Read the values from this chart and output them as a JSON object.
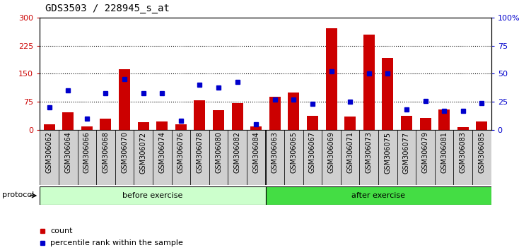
{
  "title": "GDS3503 / 228945_s_at",
  "samples": [
    "GSM306062",
    "GSM306064",
    "GSM306066",
    "GSM306068",
    "GSM306070",
    "GSM306072",
    "GSM306074",
    "GSM306076",
    "GSM306078",
    "GSM306080",
    "GSM306082",
    "GSM306084",
    "GSM306063",
    "GSM306065",
    "GSM306067",
    "GSM306069",
    "GSM306071",
    "GSM306073",
    "GSM306075",
    "GSM306077",
    "GSM306079",
    "GSM306081",
    "GSM306083",
    "GSM306085"
  ],
  "counts": [
    15,
    48,
    10,
    30,
    163,
    20,
    22,
    15,
    80,
    52,
    72,
    10,
    88,
    100,
    38,
    272,
    35,
    255,
    193,
    38,
    32,
    55,
    8,
    22
  ],
  "percentile_ranks": [
    20,
    35,
    10,
    33,
    45,
    33,
    33,
    8,
    40,
    38,
    43,
    5,
    27,
    27,
    23,
    52,
    25,
    50,
    50,
    18,
    26,
    17,
    17,
    24
  ],
  "before_count": 12,
  "after_count": 12,
  "before_label": "before exercise",
  "after_label": "after exercise",
  "protocol_label": "protocol",
  "before_color": "#ccffcc",
  "after_color": "#44dd44",
  "bar_color": "#cc0000",
  "dot_color": "#0000cc",
  "legend_count_label": "count",
  "legend_pct_label": "percentile rank within the sample",
  "ylim_left": [
    0,
    300
  ],
  "ylim_right": [
    0,
    100
  ],
  "yticks_left": [
    0,
    75,
    150,
    225,
    300
  ],
  "yticks_right": [
    0,
    25,
    50,
    75,
    100
  ],
  "ytick_right_labels": [
    "0",
    "25",
    "50",
    "75",
    "100%"
  ],
  "hlines": [
    75,
    150,
    225
  ],
  "background_color": "#ffffff",
  "title_fontsize": 10,
  "tick_label_fontsize": 7,
  "plot_bg": "#ffffff",
  "xticklabel_bg": "#d0d0d0"
}
